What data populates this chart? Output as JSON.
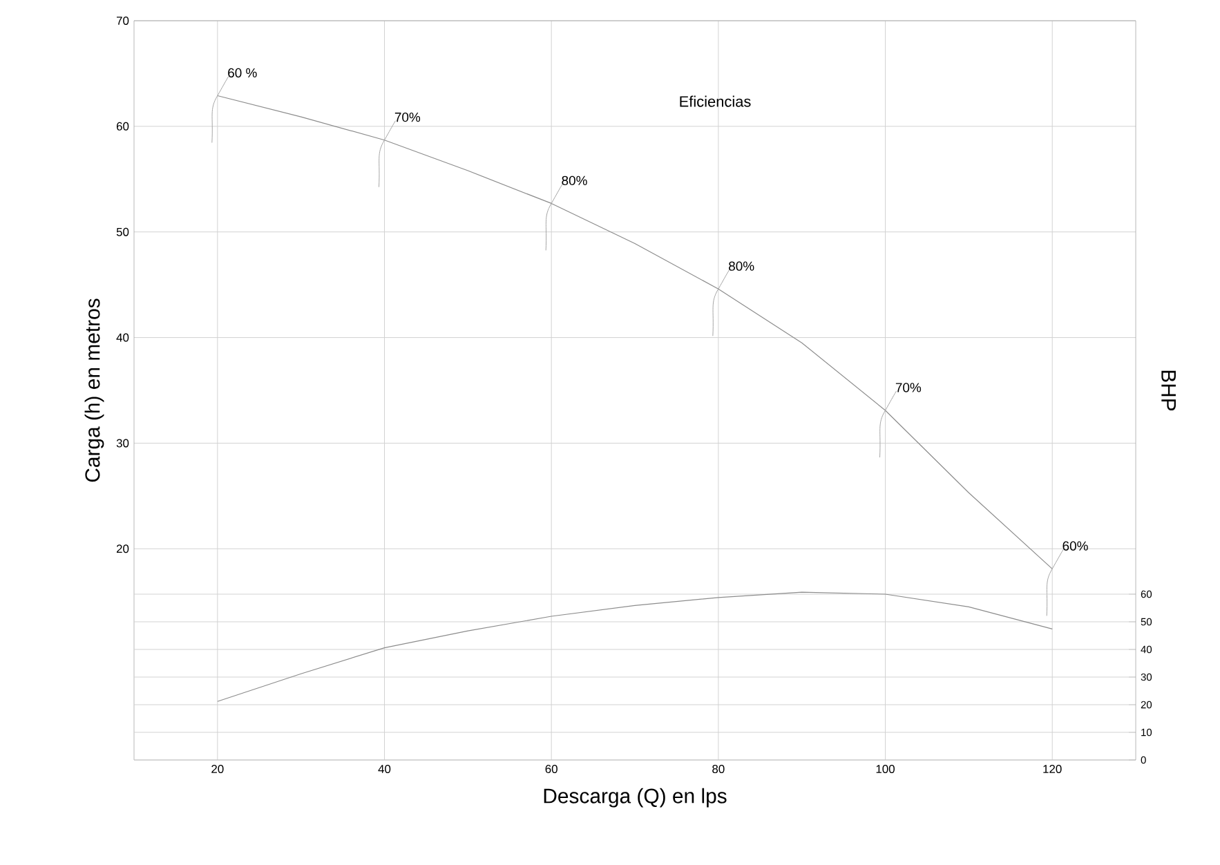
{
  "chart_data": {
    "type": "line",
    "xlabel": "Descarga (Q) en lps",
    "ylabel": "Carga (h) en metros",
    "y2label": "BHP",
    "x": [
      20,
      30,
      40,
      50,
      60,
      70,
      80,
      90,
      100,
      110,
      120
    ],
    "series": [
      {
        "color": "#8c8c8c",
        "values": [
          62.9,
          60.9,
          58.7,
          55.8,
          52.7,
          48.9,
          44.6,
          39.5,
          33.1,
          25.3,
          18.1
        ]
      },
      {
        "color": "#8c8c8c",
        "axis": "y2",
        "values": [
          21.2,
          31.2,
          40.6,
          46.7,
          52,
          55.9,
          58.8,
          60.7,
          60,
          55.4,
          47.4
        ]
      }
    ],
    "xlim": [
      10,
      130
    ],
    "ylim": [
      0,
      70
    ],
    "y2lim": [
      0,
      267.5
    ],
    "xticks": [
      20,
      40,
      60,
      80,
      100,
      120
    ],
    "yticks": [
      20,
      30,
      40,
      50,
      60,
      70
    ],
    "y2ticks": [
      0,
      10,
      20,
      30,
      40,
      50,
      60
    ],
    "grid": true,
    "annotations": [
      {
        "text": "60 %",
        "x": 20,
        "y": 62.9
      },
      {
        "text": "70%",
        "x": 40,
        "y": 58.7
      },
      {
        "text": "80%",
        "x": 60,
        "y": 52.7
      },
      {
        "text": "80%",
        "x": 80,
        "y": 44.6
      },
      {
        "text": "70%",
        "x": 100,
        "y": 33.1
      },
      {
        "text": "60%",
        "x": 120,
        "y": 18.1
      },
      "Eficiencias"
    ]
  }
}
